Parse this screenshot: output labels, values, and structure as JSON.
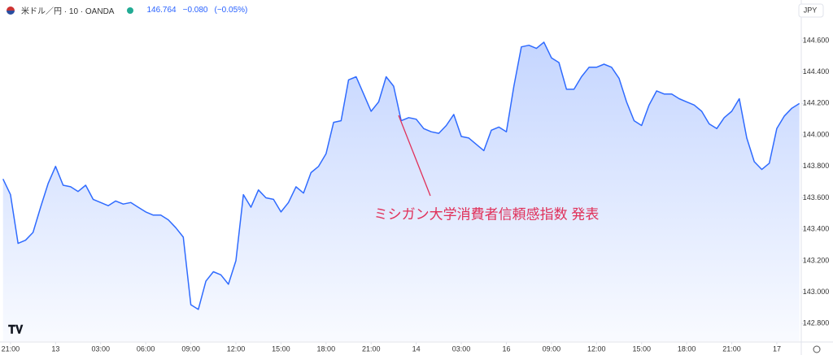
{
  "header": {
    "symbol": "米ドル／円 · 10 · OANDA",
    "price": "146.764",
    "change": "−0.080",
    "change_pct": "(−0.05%)",
    "currency": "JPY"
  },
  "chart_data": {
    "type": "area",
    "color": "#2f6bff",
    "grid": false,
    "annotation": "ミシガン大学消費者信頼感指数 発表",
    "x": [
      -0.5,
      0,
      0.5,
      1,
      1.5,
      2,
      2.5,
      3,
      3.5,
      4,
      4.5,
      5,
      5.5,
      6,
      6.5,
      7,
      7.5,
      8,
      8.5,
      9,
      9.5,
      10,
      10.5,
      11,
      11.5,
      12,
      12.5,
      13,
      13.5,
      14,
      14.5,
      15,
      15.5,
      16,
      16.5,
      17,
      17.5,
      18,
      18.5,
      19,
      19.5,
      20,
      20.5,
      21,
      21.5,
      22,
      22.5,
      23,
      23.5,
      24,
      24.5,
      25,
      25.5,
      26,
      26.5,
      27,
      27.5,
      28,
      28.5,
      29,
      29.5,
      30,
      30.5,
      31,
      31.5,
      32,
      32.5,
      33,
      33.5,
      34,
      34.5,
      35,
      35.5,
      36,
      36.5,
      37,
      37.5,
      38,
      38.5,
      39,
      39.5,
      40,
      40.5,
      41,
      41.5,
      42,
      42.5,
      43,
      43.5,
      44,
      44.5,
      45,
      45.5,
      46,
      46.5,
      47,
      47.5,
      48,
      48.5,
      49,
      49.5,
      50,
      50.5,
      51,
      51.5,
      52,
      52.5
    ],
    "values": [
      143.72,
      143.62,
      143.31,
      143.33,
      143.38,
      143.54,
      143.69,
      143.8,
      143.68,
      143.67,
      143.64,
      143.68,
      143.59,
      143.57,
      143.55,
      143.58,
      143.56,
      143.57,
      143.54,
      143.51,
      143.49,
      143.49,
      143.46,
      143.41,
      143.35,
      142.92,
      142.89,
      143.07,
      143.13,
      143.11,
      143.05,
      143.2,
      143.62,
      143.54,
      143.65,
      143.6,
      143.59,
      143.51,
      143.57,
      143.67,
      143.63,
      143.76,
      143.8,
      143.88,
      144.08,
      144.09,
      144.35,
      144.37,
      144.26,
      144.15,
      144.21,
      144.37,
      144.31,
      144.09,
      144.11,
      144.1,
      144.04,
      144.02,
      144.01,
      144.06,
      144.13,
      143.99,
      143.98,
      143.94,
      143.9,
      144.03,
      144.05,
      144.02,
      144.31,
      144.56,
      144.57,
      144.55,
      144.59,
      144.49,
      144.46,
      144.29,
      144.29,
      144.37,
      144.43,
      144.43,
      144.45,
      144.43,
      144.36,
      144.21,
      144.09,
      144.06,
      144.19,
      144.28,
      144.26,
      144.26,
      144.23,
      144.21,
      144.19,
      144.15,
      144.07,
      144.04,
      144.11,
      144.15,
      144.23,
      143.98,
      143.83,
      143.78,
      143.82,
      144.04,
      144.12,
      144.17,
      144.2
    ],
    "xlim": [
      -0.7,
      52.6
    ],
    "xticks": [
      {
        "value": 0,
        "label": "21:00"
      },
      {
        "value": 3,
        "label": "13"
      },
      {
        "value": 6,
        "label": "03:00"
      },
      {
        "value": 9,
        "label": "06:00"
      },
      {
        "value": 12,
        "label": "09:00"
      },
      {
        "value": 15,
        "label": "12:00"
      },
      {
        "value": 18,
        "label": "15:00"
      },
      {
        "value": 21,
        "label": "18:00"
      },
      {
        "value": 24,
        "label": "21:00"
      },
      {
        "value": 27,
        "label": "14"
      },
      {
        "value": 30,
        "label": "03:00"
      },
      {
        "value": 33,
        "label": "16"
      },
      {
        "value": 36,
        "label": "09:00"
      },
      {
        "value": 39,
        "label": "12:00"
      },
      {
        "value": 42,
        "label": "15:00"
      },
      {
        "value": 45,
        "label": "18:00"
      },
      {
        "value": 48,
        "label": "21:00"
      },
      {
        "value": 51,
        "label": "17"
      }
    ],
    "ylim": [
      142.688,
      144.858
    ],
    "yticks": [
      {
        "value": 142.8,
        "label": "142.800"
      },
      {
        "value": 143,
        "label": "143.000"
      },
      {
        "value": 143.2,
        "label": "143.200"
      },
      {
        "value": 143.4,
        "label": "143.400"
      },
      {
        "value": 143.6,
        "label": "143.600"
      },
      {
        "value": 143.8,
        "label": "143.800"
      },
      {
        "value": 144,
        "label": "144.000"
      },
      {
        "value": 144.2,
        "label": "144.200"
      },
      {
        "value": 144.4,
        "label": "144.400"
      },
      {
        "value": 144.6,
        "label": "144.600"
      }
    ]
  }
}
